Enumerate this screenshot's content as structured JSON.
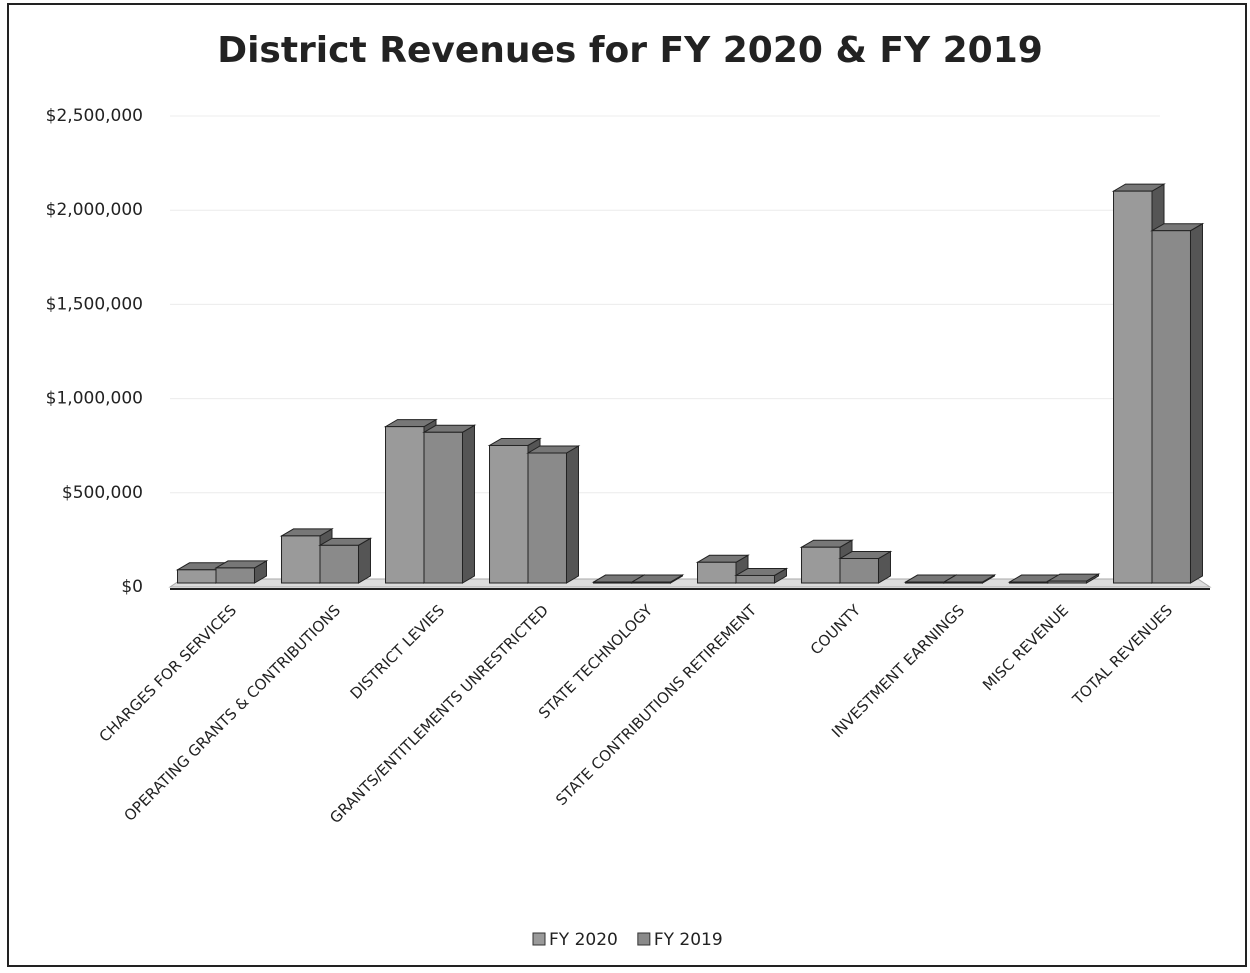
{
  "chart_data": {
    "type": "bar",
    "title": "District Revenues for FY 2020 & FY 2019",
    "categories": [
      "CHARGES FOR SERVICES",
      "OPERATING GRANTS & CONTRIBUTIONS",
      "DISTRICT LEVIES",
      "GRANTS/ENTITLEMENTS UNRESTRICTED",
      "STATE TECHNOLOGY",
      "STATE CONTRIBUTIONS RETIREMENT",
      "COUNTY",
      "INVESTMENT EARNINGS",
      "MISC REVENUE",
      "TOTAL REVENUES"
    ],
    "series": [
      {
        "name": "FY 2020",
        "color": "#9a9a9a",
        "values": [
          70000,
          250000,
          830000,
          730000,
          5000,
          110000,
          190000,
          5000,
          5000,
          2080000
        ]
      },
      {
        "name": "FY 2019",
        "color": "#8a8a8a",
        "values": [
          80000,
          200000,
          800000,
          690000,
          5000,
          40000,
          130000,
          5000,
          10000,
          1870000
        ]
      }
    ],
    "ylim": [
      0,
      2500000
    ],
    "yticks": [
      {
        "value": 0,
        "label": "$0"
      },
      {
        "value": 500000,
        "label": "$500,000"
      },
      {
        "value": 1000000,
        "label": "$1,000,000"
      },
      {
        "value": 1500000,
        "label": "$1,500,000"
      },
      {
        "value": 2000000,
        "label": "$2,000,000"
      },
      {
        "value": 2500000,
        "label": "$2,500,000"
      }
    ],
    "grid": true,
    "legend": "bottom"
  }
}
